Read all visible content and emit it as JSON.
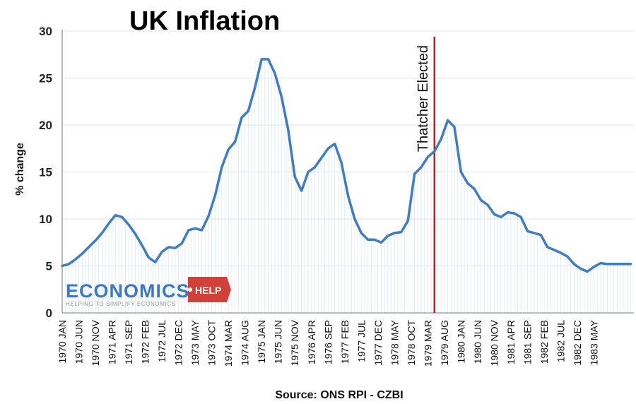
{
  "chart_data": {
    "type": "line",
    "title": "UK Inflation",
    "ylabel": "% change",
    "xlabel": "Source: ONS RPI - CZBI",
    "ylim": [
      0,
      30
    ],
    "yticks": [
      0,
      5,
      10,
      15,
      20,
      25,
      30
    ],
    "grid": true,
    "x_tick_labels": [
      "1970 JAN",
      "1970 JUN",
      "1970 NOV",
      "1971 APR",
      "1971 SEP",
      "1972 FEB",
      "1972 JUL",
      "1972 DEC",
      "1973 MAY",
      "1973 OCT",
      "1974 MAR",
      "1974 AUG",
      "1975 JAN",
      "1975 JUN",
      "1975 NOV",
      "1976 APR",
      "1976 SEP",
      "1977 FEB",
      "1977 JUL",
      "1977 DEC",
      "1978 MAY",
      "1978 OCT",
      "1979 MAR",
      "1979 AUG",
      "1980 JAN",
      "1980 JUN",
      "1980 NOV",
      "1981 APR",
      "1981 SEP",
      "1982 FEB",
      "1982 JUL",
      "1982 DEC",
      "1983 MAY"
    ],
    "series": [
      {
        "color": "#3f7cc4",
        "x": [
          0,
          2,
          4,
          6,
          8,
          10,
          12,
          14,
          16,
          18,
          20,
          22,
          24,
          26,
          28,
          30,
          32,
          34,
          36,
          38,
          40,
          42,
          44,
          46,
          48,
          50,
          52,
          54,
          56,
          58,
          60,
          62,
          64,
          66,
          68,
          70,
          72,
          74,
          76,
          78,
          80,
          82,
          84,
          86,
          88,
          90,
          92,
          94,
          96,
          98,
          100,
          102,
          104,
          106,
          108,
          110,
          112,
          114,
          116,
          118,
          120,
          122,
          124,
          126,
          128,
          130,
          132,
          134,
          136,
          138,
          140,
          142,
          144,
          146,
          148,
          150,
          152,
          154,
          156,
          158,
          160,
          162,
          164,
          166,
          168,
          170,
          171
        ],
        "y": [
          5.0,
          5.2,
          5.7,
          6.3,
          7.0,
          7.7,
          8.5,
          9.5,
          10.4,
          10.2,
          9.4,
          8.4,
          7.2,
          5.9,
          5.4,
          6.5,
          7.0,
          6.9,
          7.4,
          8.8,
          9.0,
          8.8,
          10.3,
          12.5,
          15.5,
          17.4,
          18.2,
          20.8,
          21.5,
          24.0,
          27.0,
          27.0,
          25.5,
          23.0,
          19.5,
          14.5,
          13.0,
          15.0,
          15.5,
          16.5,
          17.5,
          18.0,
          16.0,
          12.5,
          10.0,
          8.5,
          7.8,
          7.8,
          7.5,
          8.2,
          8.5,
          8.6,
          9.8,
          14.8,
          15.5,
          16.6,
          17.2,
          18.5,
          20.5,
          19.8,
          15.0,
          13.8,
          13.2,
          12.0,
          11.5,
          10.5,
          10.2,
          10.7,
          10.6,
          10.2,
          8.7,
          8.5,
          8.3,
          7.0,
          6.7,
          6.4,
          6.0,
          5.2,
          4.7,
          4.4,
          4.9,
          5.3,
          5.2,
          5.2,
          5.2,
          5.2,
          5.2
        ]
      }
    ],
    "annotations": [
      {
        "text": "Thatcher Elected",
        "x_month": 112,
        "color": "#b52025"
      }
    ]
  },
  "logo": {
    "main": "ECONOMICS",
    "badge": "HELP",
    "tagline": "HELPING TO SIMPLIFY ECONOMICS"
  }
}
